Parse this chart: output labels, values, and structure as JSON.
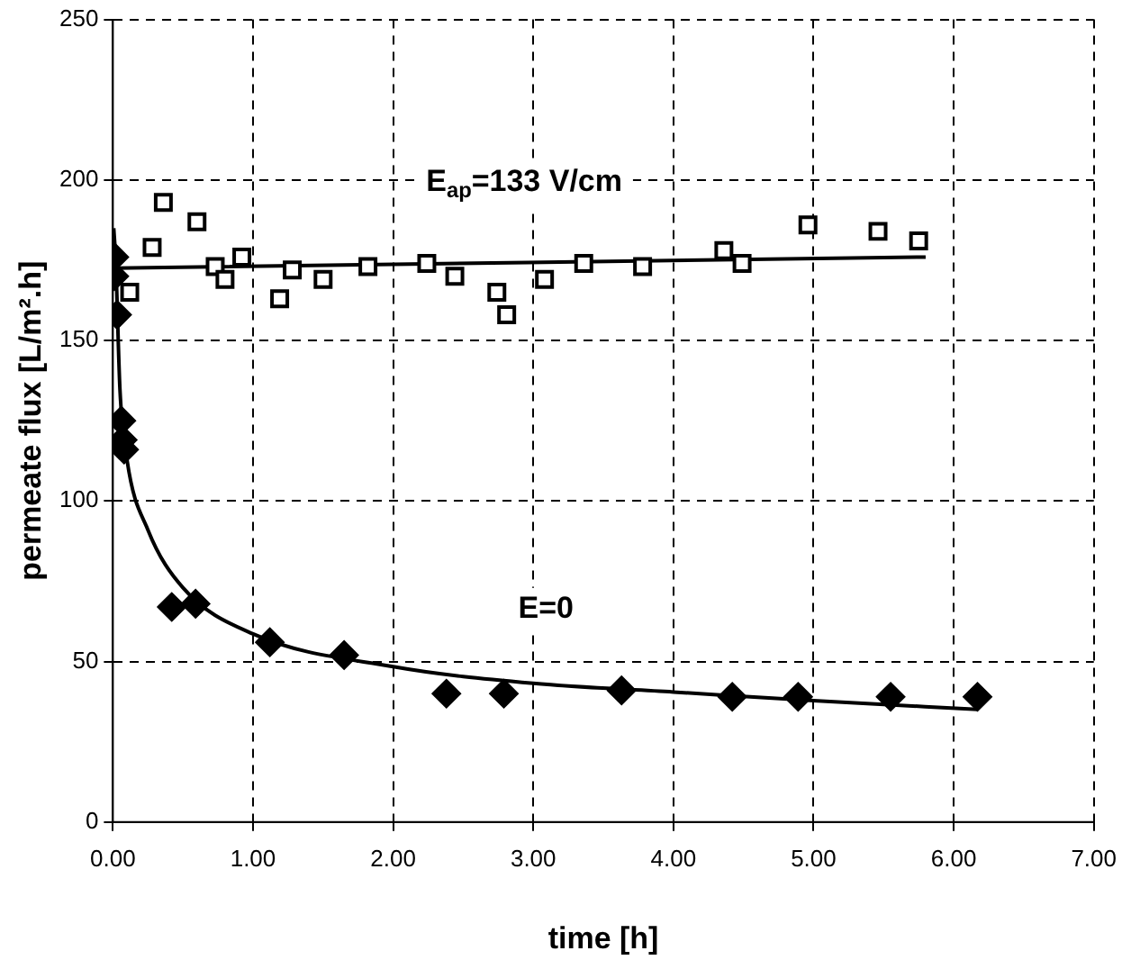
{
  "chart_data": {
    "type": "scatter",
    "xlabel": "time [h]",
    "ylabel": "permeate flux [L/m².h]",
    "xlim": [
      0,
      7
    ],
    "xticks": [
      {
        "value": 0,
        "label": "0.00"
      },
      {
        "value": 1,
        "label": "1.00"
      },
      {
        "value": 2,
        "label": "2.00"
      },
      {
        "value": 3,
        "label": "3.00"
      },
      {
        "value": 4,
        "label": "4.00"
      },
      {
        "value": 5,
        "label": "5.00"
      },
      {
        "value": 6,
        "label": "6.00"
      },
      {
        "value": 7,
        "label": "7.00"
      }
    ],
    "ylim": [
      0,
      250
    ],
    "yticks": [
      0,
      50,
      100,
      150,
      200,
      250
    ],
    "grid": true,
    "legend": false,
    "series": [
      {
        "name": "E$_{ap}$=133 V/cm",
        "marker": "square",
        "color": "#000000",
        "x": [
          0.12,
          0.28,
          0.36,
          0.6,
          0.73,
          0.8,
          0.92,
          1.19,
          1.28,
          1.5,
          1.82,
          2.24,
          2.44,
          2.74,
          2.81,
          3.08,
          3.36,
          3.78,
          4.36,
          4.49,
          4.96,
          5.46,
          5.75
        ],
        "values": [
          165,
          179,
          193,
          187,
          173,
          169,
          176,
          163,
          172,
          169,
          173,
          174,
          170,
          165,
          158,
          169,
          174,
          173,
          178,
          174,
          186,
          184,
          181
        ]
      },
      {
        "name": "E=0",
        "marker": "diamond",
        "color": "#000000",
        "x": [
          0.01,
          0.01,
          0.03,
          0.06,
          0.07,
          0.08,
          0.42,
          0.59,
          1.12,
          1.65,
          2.38,
          2.79,
          3.63,
          4.42,
          4.89,
          5.55,
          6.17
        ],
        "values": [
          176,
          170,
          158,
          125,
          119,
          116,
          67,
          68,
          56,
          52,
          40,
          40,
          41,
          39,
          39,
          39,
          39
        ]
      },
      {
        "type": "line",
        "marker": "none",
        "color": "#000000",
        "x": [
          0.01,
          5.8
        ],
        "values": [
          172.5,
          176
        ]
      },
      {
        "type": "line",
        "marker": "none",
        "color": "#000000",
        "x": [
          0.006,
          0.02,
          0.05,
          0.1,
          0.25,
          0.5,
          1,
          2,
          3,
          4,
          5,
          6.17
        ],
        "values": [
          185,
          175,
          135,
          113,
          91,
          73,
          58.6,
          48.4,
          43.2,
          40.5,
          37.8,
          35.1
        ]
      }
    ]
  }
}
